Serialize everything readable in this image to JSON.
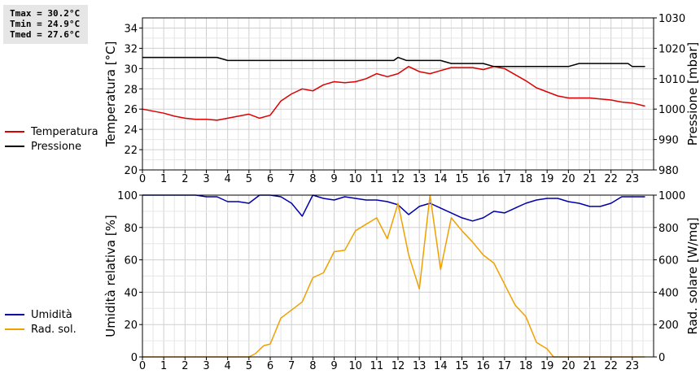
{
  "stats": {
    "tmax": "Tmax = 30.2°C",
    "tmin": "Tmin = 24.9°C",
    "tmed": "Tmed = 27.6°C"
  },
  "chart_data": [
    {
      "type": "line",
      "x_ticks": [
        0,
        1,
        2,
        3,
        4,
        5,
        6,
        7,
        8,
        9,
        10,
        11,
        12,
        13,
        14,
        15,
        16,
        17,
        18,
        19,
        20,
        21,
        22,
        23
      ],
      "xlim": [
        0,
        24
      ],
      "grid": true,
      "legend_placement": "left",
      "left_axis": {
        "label": "Temperatura [°C]",
        "ylim": [
          20,
          35
        ],
        "ticks": [
          20,
          22,
          24,
          26,
          28,
          30,
          32,
          34
        ]
      },
      "right_axis": {
        "label": "Pressione [mbar]",
        "ylim": [
          980,
          1030
        ],
        "ticks": [
          980,
          990,
          1000,
          1010,
          1020,
          1030
        ]
      },
      "series": [
        {
          "name": "Temperatura",
          "axis": "left",
          "color": "#dd0000",
          "x": [
            0,
            0.5,
            1,
            1.5,
            2,
            2.5,
            3,
            3.5,
            4,
            4.5,
            5,
            5.5,
            6,
            6.5,
            7,
            7.5,
            8,
            8.5,
            9,
            9.5,
            10,
            10.5,
            11,
            11.5,
            12,
            12.5,
            13,
            13.5,
            14,
            14.5,
            15,
            15.5,
            16,
            16.5,
            17,
            17.5,
            18,
            18.5,
            19,
            19.5,
            20,
            20.5,
            21,
            21.5,
            22,
            22.5,
            23,
            23.6
          ],
          "y": [
            26.0,
            25.8,
            25.6,
            25.3,
            25.1,
            25.0,
            25.0,
            24.9,
            25.1,
            25.3,
            25.5,
            25.1,
            25.4,
            26.8,
            27.5,
            28.0,
            27.8,
            28.4,
            28.7,
            28.6,
            28.7,
            29.0,
            29.5,
            29.2,
            29.5,
            30.2,
            29.7,
            29.5,
            29.8,
            30.1,
            30.1,
            30.1,
            29.9,
            30.2,
            30.0,
            29.4,
            28.8,
            28.1,
            27.7,
            27.3,
            27.1,
            27.1,
            27.1,
            27.0,
            26.9,
            26.7,
            26.6,
            26.3
          ]
        },
        {
          "name": "Pressione",
          "axis": "right",
          "color": "#000000",
          "x": [
            0,
            1,
            2,
            3,
            3.5,
            4,
            5,
            6,
            7,
            8,
            9,
            10,
            11,
            11.8,
            12,
            12.4,
            13,
            14,
            14.5,
            15,
            16,
            16.5,
            17,
            18,
            19,
            20,
            20.5,
            21,
            22,
            22.8,
            23,
            23.6
          ],
          "y": [
            1017,
            1017,
            1017,
            1017,
            1017,
            1016,
            1016,
            1016,
            1016,
            1016,
            1016,
            1016,
            1016,
            1016,
            1017,
            1016,
            1016,
            1016,
            1015,
            1015,
            1015,
            1014,
            1014,
            1014,
            1014,
            1014,
            1015,
            1015,
            1015,
            1015,
            1014,
            1014
          ]
        }
      ]
    },
    {
      "type": "line",
      "x_ticks": [
        0,
        1,
        2,
        3,
        4,
        5,
        6,
        7,
        8,
        9,
        10,
        11,
        12,
        13,
        14,
        15,
        16,
        17,
        18,
        19,
        20,
        21,
        22,
        23
      ],
      "xlim": [
        0,
        24
      ],
      "grid": true,
      "legend_placement": "left",
      "left_axis": {
        "label": "Umidità relativa [%]",
        "ylim": [
          0,
          100
        ],
        "ticks": [
          0,
          20,
          40,
          60,
          80,
          100
        ]
      },
      "right_axis": {
        "label": "Rad. solare [W/mq]",
        "ylim": [
          0,
          1000
        ],
        "ticks": [
          0,
          200,
          400,
          600,
          800,
          1000
        ]
      },
      "series": [
        {
          "name": "Umidità",
          "axis": "left",
          "color": "#0000aa",
          "x": [
            0,
            0.5,
            1,
            1.5,
            2,
            2.5,
            3,
            3.5,
            4,
            4.5,
            5,
            5.5,
            6,
            6.5,
            7,
            7.5,
            8,
            8.5,
            9,
            9.5,
            10,
            10.5,
            11,
            11.5,
            12,
            12.5,
            13,
            13.5,
            14,
            14.5,
            15,
            15.5,
            16,
            16.5,
            17,
            17.5,
            18,
            18.5,
            19,
            19.5,
            20,
            20.5,
            21,
            21.5,
            22,
            22.5,
            23,
            23.6
          ],
          "y": [
            100,
            100,
            100,
            100,
            100,
            100,
            99,
            99,
            96,
            96,
            95,
            100,
            100,
            99,
            95,
            87,
            100,
            98,
            97,
            99,
            98,
            97,
            97,
            96,
            94,
            88,
            93,
            95,
            92,
            89,
            86,
            84,
            86,
            90,
            89,
            92,
            95,
            97,
            98,
            98,
            96,
            95,
            93,
            93,
            95,
            99,
            99,
            99
          ]
        },
        {
          "name": "Rad. sol.",
          "axis": "right",
          "color": "#f0a000",
          "x": [
            0,
            0.5,
            1,
            1.5,
            2,
            2.5,
            3,
            3.5,
            4,
            4.5,
            5,
            5.3,
            5.7,
            6,
            6.5,
            7,
            7.5,
            8,
            8.5,
            9,
            9.5,
            10,
            10.5,
            11,
            11.5,
            12,
            12.5,
            13,
            13.5,
            14,
            14.5,
            15,
            15.5,
            16,
            16.5,
            17,
            17.5,
            18,
            18.5,
            19,
            19.3,
            19.7,
            20,
            21,
            22,
            23,
            23.6
          ],
          "y": [
            0,
            0,
            0,
            0,
            0,
            0,
            0,
            0,
            0,
            0,
            0,
            20,
            70,
            80,
            240,
            290,
            340,
            490,
            520,
            650,
            660,
            780,
            820,
            860,
            730,
            950,
            630,
            420,
            1000,
            540,
            860,
            780,
            710,
            630,
            580,
            450,
            320,
            250,
            90,
            50,
            0,
            0,
            0,
            0,
            0,
            0,
            0
          ]
        }
      ]
    }
  ]
}
